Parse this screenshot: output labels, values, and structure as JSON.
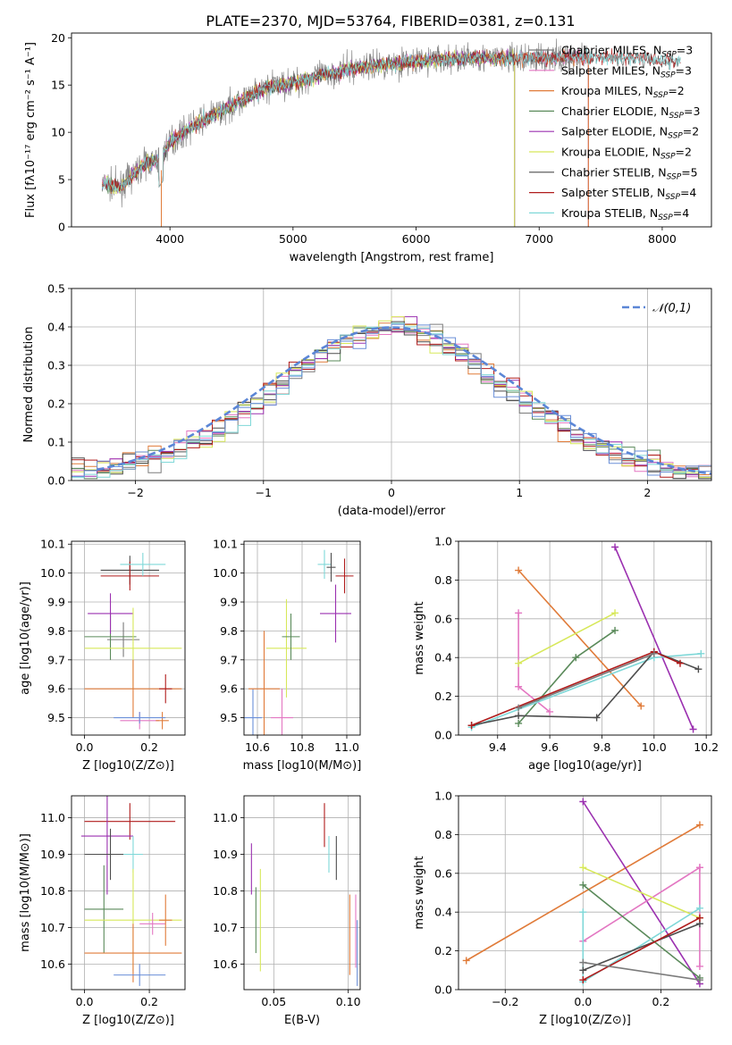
{
  "figure": {
    "title": "PLATE=2370, MJD=53764, FIBERID=0381, z=0.131"
  },
  "colors": {
    "Chabrier MILES": "#7b7b7b",
    "Salpeter MILES": "#e377c2",
    "Kroupa MILES": "#e07b39",
    "Chabrier ELODIE": "#5a8a5a",
    "Salpeter ELODIE": "#9b30b0",
    "Kroupa ELODIE": "#d7e85a",
    "Chabrier STELIB": "#4d4d4d",
    "Salpeter STELIB": "#b01c1c",
    "Kroupa STELIB": "#7fd8d8",
    "blue": "#6a8fd8"
  },
  "chart_data": [
    {
      "id": "spectrum",
      "type": "line",
      "xlabel": "wavelength [Angstrom, rest frame]",
      "ylabel": "Flux [fλ10⁻¹⁷ erg cm⁻² s⁻¹ A⁻¹]",
      "xlim": [
        3200,
        8400
      ],
      "ylim": [
        0,
        20.5
      ],
      "xticks": [
        4000,
        5000,
        6000,
        7000,
        8000
      ],
      "yticks": [
        0,
        5,
        10,
        15,
        20
      ],
      "legend_placement": "right",
      "grid": false,
      "envelope": {
        "x": [
          3450,
          3600,
          3700,
          3800,
          3900,
          3950,
          4000,
          4200,
          4500,
          4800,
          5000,
          5200,
          5500,
          5800,
          6000,
          6200,
          6500,
          6800,
          7000,
          7200,
          7500,
          7800,
          8100
        ],
        "y": [
          4.5,
          4.2,
          5.5,
          6.8,
          7.0,
          8.0,
          9.0,
          10.8,
          12.8,
          14.8,
          15.2,
          15.9,
          16.8,
          17.3,
          17.5,
          17.7,
          17.9,
          17.8,
          17.9,
          17.9,
          18.0,
          17.8,
          17.6
        ]
      },
      "series": [
        {
          "name": "Chabrier MILES, N_SSP=3",
          "xmax": 7400
        },
        {
          "name": "Salpeter MILES, N_SSP=3",
          "xmax": 7400
        },
        {
          "name": "Kroupa MILES, N_SSP=2",
          "xmax": 7400
        },
        {
          "name": "Chabrier ELODIE, N_SSP=3",
          "xmax": 6800
        },
        {
          "name": "Salpeter ELODIE, N_SSP=2",
          "xmax": 6800
        },
        {
          "name": "Kroupa ELODIE, N_SSP=2",
          "xmax": 6800
        },
        {
          "name": "Chabrier STELIB, N_SSP=5",
          "xmax": 8150
        },
        {
          "name": "Salpeter STELIB, N_SSP=4",
          "xmax": 8150
        },
        {
          "name": "Kroupa STELIB, N_SSP=4",
          "xmax": 8150
        }
      ]
    },
    {
      "id": "residuals",
      "type": "line",
      "xlabel": "(data-model)/error",
      "ylabel": "Normed distribution",
      "xlim": [
        -2.5,
        2.5
      ],
      "ylim": [
        0,
        0.5
      ],
      "xticks": [
        -2,
        -1,
        0,
        1,
        2
      ],
      "yticks": [
        0.0,
        0.1,
        0.2,
        0.3,
        0.4,
        0.5
      ],
      "grid": true,
      "legend": "𝒩(0,1)",
      "legend_placement": "top-right"
    },
    {
      "id": "z-age",
      "type": "scatter",
      "xlabel": "Z [log10(Z/Z⊙)]",
      "ylabel": "age  [log10(age/yr)]",
      "xlim": [
        -0.04,
        0.31
      ],
      "ylim": [
        9.44,
        10.11
      ],
      "xticks": [
        0.0,
        0.2
      ],
      "yticks": [
        9.5,
        9.6,
        9.7,
        9.8,
        9.9,
        10.0,
        10.1
      ],
      "grid": true,
      "points": [
        {
          "model": "Chabrier MILES",
          "x": 0.12,
          "xerr": 0.05,
          "y": 9.77,
          "yerr": 0.06
        },
        {
          "model": "Salpeter MILES",
          "x": 0.17,
          "xerr": 0.06,
          "y": 9.49,
          "yerr": 0.03
        },
        {
          "model": "Kroupa MILES",
          "x": 0.24,
          "xerr": 0.02,
          "y": 9.49,
          "yerr": 0.03
        },
        {
          "model": "Chabrier ELODIE",
          "x": 0.08,
          "xerr": 0.08,
          "y": 9.78,
          "yerr": 0.08
        },
        {
          "model": "Salpeter ELODIE",
          "x": 0.08,
          "xerr": 0.07,
          "y": 9.86,
          "yerr": 0.07
        },
        {
          "model": "Kroupa ELODIE",
          "x": 0.15,
          "xerr": 0.15,
          "y": 9.74,
          "yerr": 0.14
        },
        {
          "model": "Chabrier STELIB",
          "x": 0.14,
          "xerr": 0.09,
          "y": 10.01,
          "yerr": 0.05
        },
        {
          "model": "Salpeter STELIB",
          "x": 0.14,
          "xerr": 0.09,
          "y": 9.99,
          "yerr": 0.05
        },
        {
          "model": "Kroupa STELIB",
          "x": 0.18,
          "xerr": 0.07,
          "y": 10.03,
          "yerr": 0.04
        },
        {
          "model": "Kroupa MILES",
          "x": 0.15,
          "xerr": 0.15,
          "y": 9.6,
          "yerr": 0.1
        },
        {
          "model": "blue",
          "x": 0.17,
          "xerr": 0.08,
          "y": 9.5,
          "yerr": 0.02
        },
        {
          "model": "Salpeter STELIB",
          "x": 0.25,
          "xerr": 0.02,
          "y": 9.6,
          "yerr": 0.05
        }
      ]
    },
    {
      "id": "mass-age",
      "type": "scatter",
      "xlabel": "mass [log10(M/M⊙)]",
      "xlim": [
        10.54,
        11.06
      ],
      "ylim": [
        9.44,
        10.11
      ],
      "xticks": [
        10.6,
        10.8,
        11.0
      ],
      "yticks": [
        9.5,
        9.6,
        9.7,
        9.8,
        9.9,
        10.0,
        10.1
      ],
      "grid": true,
      "points": [
        {
          "model": "blue",
          "x": 10.58,
          "xerr": 0.04,
          "y": 9.5,
          "yerr": 0.1
        },
        {
          "model": "Kroupa MILES",
          "x": 10.63,
          "xerr": 0.07,
          "y": 9.6,
          "yerr": 0.2
        },
        {
          "model": "Kroupa ELODIE",
          "x": 10.73,
          "xerr": 0.09,
          "y": 9.74,
          "yerr": 0.17
        },
        {
          "model": "Salpeter MILES",
          "x": 10.71,
          "xerr": 0.05,
          "y": 9.5,
          "yerr": 0.1
        },
        {
          "model": "Chabrier ELODIE",
          "x": 10.75,
          "xerr": 0.04,
          "y": 9.78,
          "yerr": 0.08
        },
        {
          "model": "Salpeter ELODIE",
          "x": 10.95,
          "xerr": 0.07,
          "y": 9.86,
          "yerr": 0.1
        },
        {
          "model": "Salpeter STELIB",
          "x": 10.99,
          "xerr": 0.04,
          "y": 9.99,
          "yerr": 0.06
        },
        {
          "model": "Kroupa STELIB",
          "x": 10.9,
          "xerr": 0.03,
          "y": 10.03,
          "yerr": 0.05
        },
        {
          "model": "Chabrier STELIB",
          "x": 10.93,
          "xerr": 0.02,
          "y": 10.02,
          "yerr": 0.05
        }
      ]
    },
    {
      "id": "age-weight",
      "type": "line",
      "xlabel": "age  [log10(age/yr)]",
      "ylabel": "mass weight",
      "xlim": [
        9.25,
        10.22
      ],
      "ylim": [
        0,
        1.0
      ],
      "xticks": [
        9.4,
        9.6,
        9.8,
        10.0,
        10.2
      ],
      "yticks": [
        0.0,
        0.2,
        0.4,
        0.6,
        0.8,
        1.0
      ],
      "grid": true,
      "series": [
        {
          "model": "Kroupa MILES",
          "x": [
            9.48,
            9.95
          ],
          "y": [
            0.85,
            0.15
          ]
        },
        {
          "model": "Salpeter ELODIE",
          "x": [
            9.85,
            10.15
          ],
          "y": [
            0.97,
            0.03
          ]
        },
        {
          "model": "Salpeter MILES",
          "x": [
            9.48,
            9.48,
            9.6
          ],
          "y": [
            0.63,
            0.25,
            0.12
          ]
        },
        {
          "model": "Kroupa ELODIE",
          "x": [
            9.48,
            9.85
          ],
          "y": [
            0.37,
            0.63
          ]
        },
        {
          "model": "Chabrier ELODIE",
          "x": [
            9.48,
            9.7,
            9.85
          ],
          "y": [
            0.06,
            0.4,
            0.54
          ]
        },
        {
          "model": "Kroupa STELIB",
          "x": [
            9.3,
            10.0,
            10.18
          ],
          "y": [
            0.04,
            0.4,
            0.42
          ]
        },
        {
          "model": "Chabrier STELIB",
          "x": [
            9.3,
            9.48,
            9.78,
            10.0,
            10.17
          ],
          "y": [
            0.05,
            0.1,
            0.09,
            0.43,
            0.34
          ]
        },
        {
          "model": "Salpeter STELIB",
          "x": [
            9.3,
            10.0,
            10.1
          ],
          "y": [
            0.05,
            0.43,
            0.37
          ]
        },
        {
          "model": "Chabrier MILES",
          "x": [
            9.48,
            10.0
          ],
          "y": [
            0.14,
            0.42
          ]
        }
      ]
    },
    {
      "id": "z-mass",
      "type": "scatter",
      "xlabel": "Z [log10(Z/Z⊙)]",
      "ylabel": "mass [log10(M/M⊙)]",
      "xlim": [
        -0.04,
        0.31
      ],
      "ylim": [
        10.53,
        11.06
      ],
      "xticks": [
        0.0,
        0.2
      ],
      "yticks": [
        10.6,
        10.7,
        10.8,
        10.9,
        11.0
      ],
      "grid": true,
      "points": [
        {
          "model": "Salpeter STELIB",
          "x": 0.14,
          "xerr": 0.14,
          "y": 10.99,
          "yerr": 0.05
        },
        {
          "model": "Salpeter ELODIE",
          "x": 0.07,
          "xerr": 0.08,
          "y": 10.95,
          "yerr": 0.16
        },
        {
          "model": "Chabrier STELIB",
          "x": 0.08,
          "xerr": 0.08,
          "y": 10.9,
          "yerr": 0.07
        },
        {
          "model": "Kroupa STELIB",
          "x": 0.15,
          "xerr": 0.03,
          "y": 10.9,
          "yerr": 0.05
        },
        {
          "model": "Chabrier ELODIE",
          "x": 0.06,
          "xerr": 0.06,
          "y": 10.75,
          "yerr": 0.12
        },
        {
          "model": "Kroupa ELODIE",
          "x": 0.15,
          "xerr": 0.15,
          "y": 10.72,
          "yerr": 0.14
        },
        {
          "model": "Salpeter MILES",
          "x": 0.21,
          "xerr": 0.04,
          "y": 10.71,
          "yerr": 0.03
        },
        {
          "model": "Kroupa MILES",
          "x": 0.15,
          "xerr": 0.15,
          "y": 10.63,
          "yerr": 0.08
        },
        {
          "model": "Kroupa MILES",
          "x": 0.25,
          "xerr": 0.02,
          "y": 10.72,
          "yerr": 0.07
        },
        {
          "model": "blue",
          "x": 0.17,
          "xerr": 0.08,
          "y": 10.57,
          "yerr": 0.03
        }
      ]
    },
    {
      "id": "ebv-mass",
      "type": "scatter",
      "xlabel": "E(B-V)",
      "xlim": [
        0.03,
        0.108
      ],
      "ylim": [
        10.53,
        11.06
      ],
      "xticks": [
        0.05,
        0.1
      ],
      "yticks": [
        10.6,
        10.7,
        10.8,
        10.9,
        11.0
      ],
      "grid": true,
      "points": [
        {
          "model": "Salpeter ELODIE",
          "x": 0.035,
          "y": 10.86,
          "yerr": 0.07
        },
        {
          "model": "Chabrier ELODIE",
          "x": 0.038,
          "y": 10.72,
          "yerr": 0.09
        },
        {
          "model": "Kroupa ELODIE",
          "x": 0.041,
          "y": 10.72,
          "yerr": 0.14
        },
        {
          "model": "Salpeter STELIB",
          "x": 0.084,
          "y": 10.98,
          "yerr": 0.06
        },
        {
          "model": "Kroupa STELIB",
          "x": 0.087,
          "y": 10.9,
          "yerr": 0.05
        },
        {
          "model": "Chabrier STELIB",
          "x": 0.092,
          "y": 10.89,
          "yerr": 0.06
        },
        {
          "model": "Kroupa MILES",
          "x": 0.101,
          "y": 10.68,
          "yerr": 0.11
        },
        {
          "model": "Salpeter MILES",
          "x": 0.105,
          "y": 10.69,
          "yerr": 0.1
        },
        {
          "model": "blue",
          "x": 0.106,
          "y": 10.63,
          "yerr": 0.09
        }
      ]
    },
    {
      "id": "z-weight",
      "type": "line",
      "xlabel": "Z [log10(Z/Z⊙)]",
      "ylabel": "mass weight",
      "xlim": [
        -0.32,
        0.33
      ],
      "ylim": [
        0,
        1.0
      ],
      "xticks": [
        -0.2,
        0.0,
        0.2
      ],
      "yticks": [
        0.0,
        0.2,
        0.4,
        0.6,
        0.8,
        1.0
      ],
      "grid": true,
      "series": [
        {
          "model": "Kroupa MILES",
          "x": [
            -0.3,
            0.3
          ],
          "y": [
            0.15,
            0.85
          ]
        },
        {
          "model": "Salpeter ELODIE",
          "x": [
            0.0,
            0.3
          ],
          "y": [
            0.97,
            0.03
          ]
        },
        {
          "model": "Salpeter MILES",
          "x": [
            0.0,
            0.3,
            0.3,
            0.3
          ],
          "y": [
            0.25,
            0.63,
            0.63,
            0.12
          ]
        },
        {
          "model": "Kroupa ELODIE",
          "x": [
            0.0,
            0.3
          ],
          "y": [
            0.63,
            0.37
          ]
        },
        {
          "model": "Chabrier ELODIE",
          "x": [
            0.0,
            0.3
          ],
          "y": [
            0.54,
            0.06
          ]
        },
        {
          "model": "Kroupa STELIB",
          "x": [
            0.0,
            0.0,
            0.3
          ],
          "y": [
            0.4,
            0.04,
            0.42
          ]
        },
        {
          "model": "Chabrier STELIB",
          "x": [
            0.0,
            0.3
          ],
          "y": [
            0.1,
            0.34
          ]
        },
        {
          "model": "Salpeter STELIB",
          "x": [
            0.0,
            0.3
          ],
          "y": [
            0.05,
            0.37
          ]
        },
        {
          "model": "Chabrier MILES",
          "x": [
            0.0,
            0.3
          ],
          "y": [
            0.14,
            0.05
          ]
        }
      ]
    }
  ]
}
